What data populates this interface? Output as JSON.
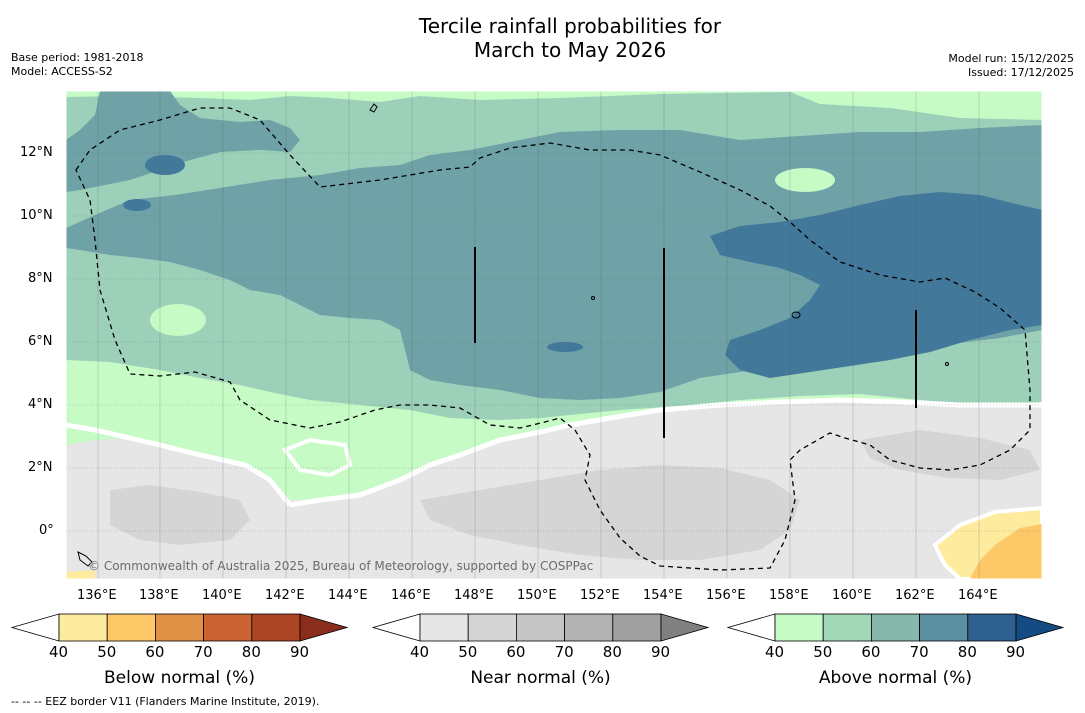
{
  "title_line1": "Tercile rainfall probabilities for",
  "title_line2": "March to May 2026",
  "base_period": "Base period: 1981-2018",
  "model": "Model: ACCESS-S2",
  "model_run": "Model run: 15/12/2025",
  "issued": "Issued: 17/12/2025",
  "lon_labels": [
    "136°E",
    "138°E",
    "140°E",
    "142°E",
    "144°E",
    "146°E",
    "148°E",
    "150°E",
    "152°E",
    "154°E",
    "156°E",
    "158°E",
    "160°E",
    "162°E",
    "164°E"
  ],
  "lat_labels": [
    "12°N",
    "10°N",
    "8°N",
    "6°N",
    "4°N",
    "2°N",
    "0°"
  ],
  "copyright": "© Commonwealth of Australia 2025, Bureau of Meteorology, supported by COSPPac",
  "footer": "-- -- -- EEZ border V11 (Flanders Marine Institute, 2019).",
  "colorbars": [
    {
      "title": "Below normal (%)",
      "ticks": [
        "40",
        "50",
        "60",
        "70",
        "80",
        "90"
      ],
      "colors": [
        "#ffffff",
        "#fdeca0",
        "#fdc868",
        "#e09145",
        "#cb6333",
        "#ab4526",
        "#8a2d1c"
      ]
    },
    {
      "title": "Near normal (%)",
      "ticks": [
        "40",
        "50",
        "60",
        "70",
        "80",
        "90"
      ],
      "colors": [
        "#ffffff",
        "#e6e6e6",
        "#d5d5d5",
        "#c5c5c5",
        "#b3b3b3",
        "#a0a0a0",
        "#808080"
      ]
    },
    {
      "title": "Above normal (%)",
      "ticks": [
        "40",
        "50",
        "60",
        "70",
        "80",
        "90"
      ],
      "colors": [
        "#ffffff",
        "#c6fac6",
        "#a2d7b8",
        "#86b8ac",
        "#5a8fa2",
        "#2f6190",
        "#134b82"
      ]
    }
  ],
  "map_colors": {
    "above_40": "#c6fbc6",
    "above_50": "#9dd0b9",
    "above_60": "#6ea2a6",
    "above_70": "#42789a",
    "near_40": "#e6e6e6",
    "near_50": "#d5d5d5",
    "below_40": "#feeb9e",
    "below_50": "#fdc868"
  }
}
